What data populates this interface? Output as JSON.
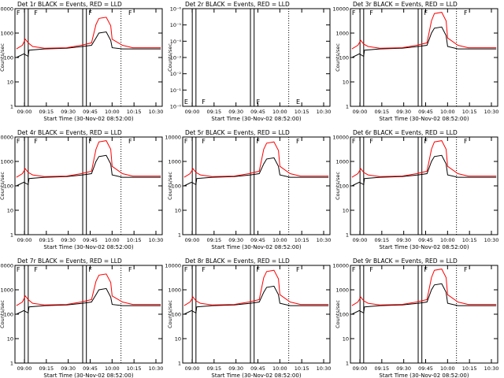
{
  "chart_data": [
    {
      "type": "line",
      "title": "Det 1r BLACK = Events, RED = LLD",
      "xlabel": "Start Time (30-Nov-02 08:52:00)",
      "ylabel": "Counts/sec",
      "xticks": [
        "09:00",
        "09:15",
        "09:30",
        "09:45",
        "10:00",
        "10:15",
        "10:30"
      ],
      "yticks": [
        "1",
        "10",
        "100",
        "1000",
        "10000"
      ],
      "ylim": [
        1,
        10000
      ],
      "yscale": "log",
      "series": [
        {
          "name": "Events",
          "color": "#000000",
          "profile": "A"
        },
        {
          "name": "LLD",
          "color": "#ff0000",
          "profile": "A"
        }
      ],
      "markers": [
        "F",
        "F",
        "F",
        "F"
      ]
    },
    {
      "type": "line",
      "title": "Det 2r BLACK = Events, RED = LLD",
      "xlabel": "Start Time (30-Nov-02 08:52:00)",
      "ylabel": "Counts/sec",
      "xticks": [
        "09:00",
        "09:15",
        "09:30",
        "09:45",
        "10:00",
        "10:15",
        "10:30"
      ],
      "yticks": [
        "10⁻⁰",
        "10⁻¹",
        "10⁻²",
        "10⁻³",
        "10⁻⁴",
        "10⁻⁵",
        "10⁻⁶"
      ],
      "yscale": "log",
      "series": [],
      "markers": [
        "E",
        "F",
        "F",
        "E"
      ]
    },
    {
      "type": "line",
      "title": "Det 3r BLACK = Events, RED = LLD",
      "xlabel": "Start Time (30-Nov-02 08:52:00)",
      "ylabel": "Counts/sec",
      "xticks": [
        "09:00",
        "09:15",
        "09:30",
        "09:45",
        "10:00",
        "10:15",
        "10:30"
      ],
      "yticks": [
        "1",
        "10",
        "100",
        "1000",
        "10000"
      ],
      "ylim": [
        1,
        10000
      ],
      "yscale": "log",
      "series": [
        {
          "name": "Events",
          "color": "#000000",
          "profile": "B"
        },
        {
          "name": "LLD",
          "color": "#ff0000",
          "profile": "B"
        }
      ],
      "markers": [
        "F",
        "F",
        "F",
        "F"
      ]
    },
    {
      "type": "line",
      "title": "Det 4r BLACK = Events, RED = LLD",
      "xlabel": "Start Time (30-Nov-02 08:52:00)",
      "ylabel": "Counts/sec",
      "xticks": [
        "09:00",
        "09:15",
        "09:30",
        "09:45",
        "10:00",
        "10:15",
        "10:30"
      ],
      "yticks": [
        "1",
        "10",
        "100",
        "1000",
        "10000"
      ],
      "ylim": [
        1,
        10000
      ],
      "yscale": "log",
      "series": [
        {
          "name": "Events",
          "color": "#000000",
          "profile": "B"
        },
        {
          "name": "LLD",
          "color": "#ff0000",
          "profile": "B"
        }
      ],
      "markers": [
        "F",
        "F",
        "F",
        "F"
      ]
    },
    {
      "type": "line",
      "title": "Det 5r BLACK = Events, RED = LLD",
      "xlabel": "Start Time (30-Nov-02 08:52:00)",
      "ylabel": "Counts/sec",
      "xticks": [
        "09:00",
        "09:15",
        "09:30",
        "09:45",
        "10:00",
        "10:15",
        "10:30"
      ],
      "yticks": [
        "1",
        "10",
        "100",
        "1000",
        "10000"
      ],
      "ylim": [
        1,
        10000
      ],
      "yscale": "log",
      "series": [
        {
          "name": "Events",
          "color": "#000000",
          "profile": "C"
        },
        {
          "name": "LLD",
          "color": "#ff0000",
          "profile": "C"
        }
      ],
      "markers": [
        "F",
        "F",
        "F",
        "F"
      ]
    },
    {
      "type": "line",
      "title": "Det 6r BLACK = Events, RED = LLD",
      "xlabel": "Start Time (30-Nov-02 08:52:00)",
      "ylabel": "Counts/sec",
      "xticks": [
        "09:00",
        "09:15",
        "09:30",
        "09:45",
        "10:00",
        "10:15",
        "10:30"
      ],
      "yticks": [
        "1",
        "10",
        "100",
        "1000",
        "10000"
      ],
      "ylim": [
        1,
        10000
      ],
      "yscale": "log",
      "series": [
        {
          "name": "Events",
          "color": "#000000",
          "profile": "B"
        },
        {
          "name": "LLD",
          "color": "#ff0000",
          "profile": "B"
        }
      ],
      "markers": [
        "F",
        "F",
        "F",
        "F"
      ]
    },
    {
      "type": "line",
      "title": "Det 7r BLACK = Events, RED = LLD",
      "xlabel": "Start Time (30-Nov-02 08:52:00)",
      "ylabel": "Counts/sec",
      "xticks": [
        "09:00",
        "09:15",
        "09:30",
        "09:45",
        "10:00",
        "10:15",
        "10:30"
      ],
      "yticks": [
        "1",
        "10",
        "100",
        "1000",
        "10000"
      ],
      "ylim": [
        1,
        10000
      ],
      "yscale": "log",
      "series": [
        {
          "name": "Events",
          "color": "#000000",
          "profile": "A"
        },
        {
          "name": "LLD",
          "color": "#ff0000",
          "profile": "A"
        }
      ],
      "markers": [
        "F",
        "F",
        "F",
        "F"
      ]
    },
    {
      "type": "line",
      "title": "Det 8r BLACK = Events, RED = LLD",
      "xlabel": "Start Time (30-Nov-02 08:52:00)",
      "ylabel": "Counts/sec",
      "xticks": [
        "09:00",
        "09:15",
        "09:30",
        "09:45",
        "10:00",
        "10:15",
        "10:30"
      ],
      "yticks": [
        "1",
        "10",
        "100",
        "1000",
        "10000"
      ],
      "ylim": [
        1,
        10000
      ],
      "yscale": "log",
      "series": [
        {
          "name": "Events",
          "color": "#000000",
          "profile": "C"
        },
        {
          "name": "LLD",
          "color": "#ff0000",
          "profile": "C"
        }
      ],
      "markers": [
        "F",
        "F",
        "F",
        "F"
      ]
    },
    {
      "type": "line",
      "title": "Det 9r BLACK = Events, RED = LLD",
      "xlabel": "Start Time (30-Nov-02 08:52:00)",
      "ylabel": "Counts/sec",
      "xticks": [
        "09:00",
        "09:15",
        "09:30",
        "09:45",
        "10:00",
        "10:15",
        "10:30"
      ],
      "yticks": [
        "1",
        "10",
        "100",
        "1000",
        "10000"
      ],
      "ylim": [
        1,
        10000
      ],
      "yscale": "log",
      "series": [
        {
          "name": "Events",
          "color": "#000000",
          "profile": "B"
        },
        {
          "name": "LLD",
          "color": "#ff0000",
          "profile": "B"
        }
      ],
      "markers": [
        "F",
        "F",
        "F",
        "F"
      ]
    }
  ]
}
